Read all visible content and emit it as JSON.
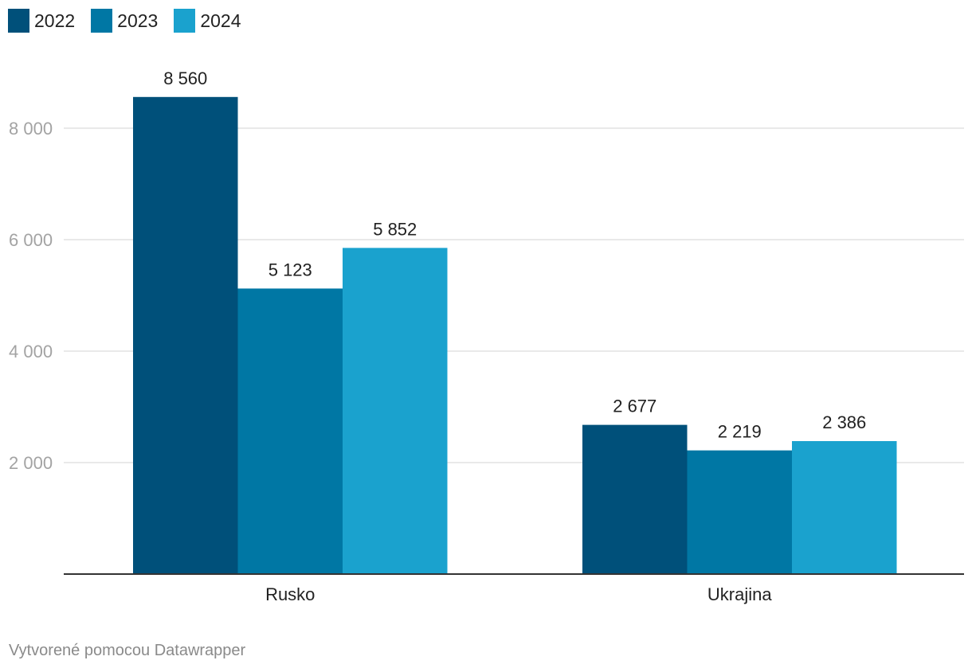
{
  "chart_data": {
    "type": "bar",
    "categories": [
      "Rusko",
      "Ukrajina"
    ],
    "series": [
      {
        "name": "2022",
        "values": [
          8560,
          2677
        ],
        "labels": [
          "8 560",
          "2 677"
        ],
        "color": "#00507a"
      },
      {
        "name": "2023",
        "values": [
          5123,
          2219
        ],
        "labels": [
          "5 123",
          "2 219"
        ],
        "color": "#0077a4"
      },
      {
        "name": "2024",
        "values": [
          5852,
          2386
        ],
        "labels": [
          "5 852",
          "2 386"
        ],
        "color": "#1aa2ce"
      }
    ],
    "yticks": [
      2000,
      4000,
      6000,
      8000
    ],
    "ytick_labels": [
      "2 000",
      "4 000",
      "6 000",
      "8 000"
    ],
    "ylim": [
      0,
      8560
    ],
    "grid": true,
    "legend": "top-left",
    "title": "",
    "xlabel": "",
    "ylabel": ""
  },
  "footer": {
    "credit": "Vytvorené pomocou Datawrapper"
  }
}
